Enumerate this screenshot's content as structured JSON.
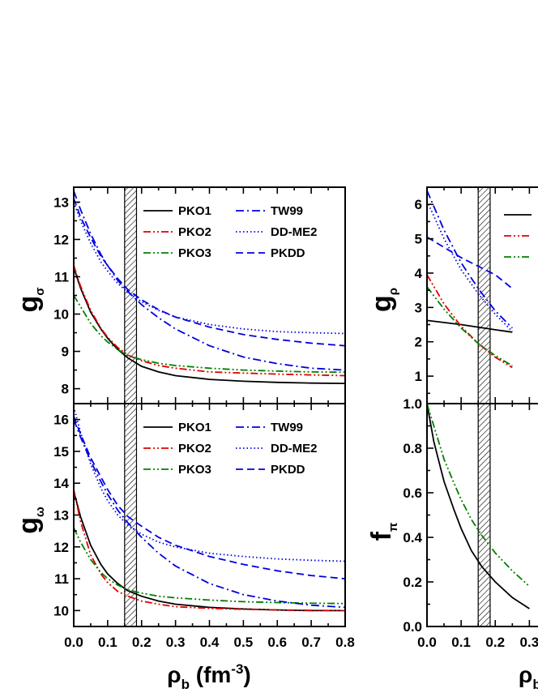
{
  "chart_data": [
    {
      "type": "line",
      "panel": "g_sigma",
      "ylabel": "g",
      "ylabel_sub": "σ",
      "xlim": [
        0.0,
        0.8
      ],
      "ylim": [
        7.6,
        13.4
      ],
      "yticks": [
        8,
        9,
        10,
        11,
        12,
        13
      ],
      "xlabel": "",
      "legend": "top-right, two columns",
      "shaded_band": [
        0.15,
        0.185
      ],
      "series": [
        {
          "name": "PKO1",
          "color": "#000000",
          "dash": "solid",
          "x": [
            0.0,
            0.02,
            0.05,
            0.08,
            0.1,
            0.13,
            0.16,
            0.2,
            0.25,
            0.3,
            0.4,
            0.5,
            0.6,
            0.7,
            0.8
          ],
          "y": [
            11.25,
            10.7,
            10.05,
            9.6,
            9.35,
            9.05,
            8.82,
            8.6,
            8.45,
            8.35,
            8.25,
            8.2,
            8.17,
            8.15,
            8.14
          ]
        },
        {
          "name": "PKO2",
          "color": "#e00000",
          "dash": "dashdotdot",
          "x": [
            0.0,
            0.02,
            0.05,
            0.08,
            0.1,
            0.13,
            0.16,
            0.2,
            0.25,
            0.3,
            0.4,
            0.5,
            0.6,
            0.7,
            0.8
          ],
          "y": [
            11.3,
            10.75,
            10.1,
            9.62,
            9.38,
            9.1,
            8.9,
            8.75,
            8.62,
            8.55,
            8.45,
            8.42,
            8.39,
            8.37,
            8.35
          ]
        },
        {
          "name": "PKO3",
          "color": "#008000",
          "dash": "dashdotdot",
          "x": [
            0.0,
            0.02,
            0.05,
            0.08,
            0.1,
            0.13,
            0.16,
            0.2,
            0.25,
            0.3,
            0.4,
            0.5,
            0.6,
            0.7,
            0.8
          ],
          "y": [
            10.5,
            10.2,
            9.75,
            9.42,
            9.25,
            9.05,
            8.88,
            8.78,
            8.68,
            8.62,
            8.55,
            8.5,
            8.47,
            8.45,
            8.44
          ]
        },
        {
          "name": "TW99",
          "color": "#0000e0",
          "dash": "dashdot",
          "x": [
            0.0,
            0.02,
            0.05,
            0.08,
            0.1,
            0.13,
            0.16,
            0.2,
            0.25,
            0.3,
            0.4,
            0.5,
            0.6,
            0.7,
            0.8
          ],
          "y": [
            13.3,
            12.8,
            12.15,
            11.6,
            11.3,
            10.9,
            10.6,
            10.25,
            9.9,
            9.6,
            9.15,
            8.85,
            8.67,
            8.55,
            8.5
          ]
        },
        {
          "name": "DD-ME2",
          "color": "#0000e0",
          "dash": "dotted",
          "x": [
            0.0,
            0.02,
            0.05,
            0.08,
            0.1,
            0.13,
            0.16,
            0.2,
            0.25,
            0.3,
            0.4,
            0.5,
            0.6,
            0.7,
            0.8
          ],
          "y": [
            13.0,
            12.5,
            11.9,
            11.4,
            11.15,
            10.82,
            10.58,
            10.33,
            10.1,
            9.92,
            9.72,
            9.6,
            9.53,
            9.5,
            9.48
          ]
        },
        {
          "name": "PKDD",
          "color": "#0000e0",
          "dash": "dashed",
          "x": [
            0.0,
            0.02,
            0.05,
            0.08,
            0.1,
            0.13,
            0.16,
            0.2,
            0.25,
            0.3,
            0.4,
            0.5,
            0.6,
            0.7,
            0.8
          ],
          "y": [
            13.1,
            12.6,
            12.05,
            11.55,
            11.3,
            10.95,
            10.65,
            10.38,
            10.12,
            9.92,
            9.65,
            9.45,
            9.32,
            9.22,
            9.15
          ]
        }
      ]
    },
    {
      "type": "line",
      "panel": "g_omega",
      "ylabel": "g",
      "ylabel_sub": "ω",
      "xlabel": "ρb (fm-3)",
      "xlim": [
        0.0,
        0.8
      ],
      "ylim": [
        9.5,
        16.5
      ],
      "yticks": [
        10,
        11,
        12,
        13,
        14,
        15,
        16
      ],
      "xticks": [
        0.0,
        0.1,
        0.2,
        0.3,
        0.4,
        0.5,
        0.6,
        0.7,
        0.8
      ],
      "legend": "top-right, two columns",
      "shaded_band": [
        0.15,
        0.185
      ],
      "series": [
        {
          "name": "PKO1",
          "color": "#000000",
          "dash": "solid",
          "x": [
            0.0,
            0.02,
            0.05,
            0.08,
            0.1,
            0.13,
            0.16,
            0.2,
            0.25,
            0.3,
            0.4,
            0.5,
            0.6,
            0.7,
            0.8
          ],
          "y": [
            13.75,
            12.95,
            12.05,
            11.45,
            11.15,
            10.85,
            10.62,
            10.45,
            10.3,
            10.2,
            10.1,
            10.05,
            10.02,
            10.0,
            10.0
          ]
        },
        {
          "name": "PKO2",
          "color": "#e00000",
          "dash": "dashdotdot",
          "x": [
            0.0,
            0.02,
            0.05,
            0.08,
            0.1,
            0.13,
            0.16,
            0.2,
            0.25,
            0.3,
            0.4,
            0.5,
            0.6,
            0.7,
            0.8
          ],
          "y": [
            13.8,
            12.8,
            11.75,
            11.15,
            10.88,
            10.6,
            10.45,
            10.3,
            10.2,
            10.12,
            10.07,
            10.04,
            10.02,
            10.01,
            10.0
          ]
        },
        {
          "name": "PKO3",
          "color": "#008000",
          "dash": "dashdotdot",
          "x": [
            0.0,
            0.02,
            0.05,
            0.08,
            0.1,
            0.13,
            0.16,
            0.2,
            0.25,
            0.3,
            0.4,
            0.5,
            0.6,
            0.7,
            0.8
          ],
          "y": [
            12.6,
            12.15,
            11.6,
            11.2,
            11.0,
            10.8,
            10.65,
            10.55,
            10.45,
            10.4,
            10.33,
            10.28,
            10.25,
            10.23,
            10.22
          ]
        },
        {
          "name": "TW99",
          "color": "#0000e0",
          "dash": "dashdot",
          "x": [
            0.0,
            0.02,
            0.05,
            0.08,
            0.1,
            0.13,
            0.16,
            0.2,
            0.25,
            0.3,
            0.4,
            0.5,
            0.6,
            0.7,
            0.8
          ],
          "y": [
            16.0,
            15.45,
            14.7,
            14.05,
            13.65,
            13.15,
            12.75,
            12.3,
            11.8,
            11.4,
            10.85,
            10.5,
            10.3,
            10.17,
            10.1
          ]
        },
        {
          "name": "DD-ME2",
          "color": "#0000e0",
          "dash": "dotted",
          "x": [
            0.0,
            0.02,
            0.05,
            0.08,
            0.1,
            0.13,
            0.16,
            0.2,
            0.25,
            0.3,
            0.4,
            0.5,
            0.6,
            0.7,
            0.8
          ],
          "y": [
            16.4,
            15.6,
            14.6,
            13.85,
            13.45,
            13.0,
            12.68,
            12.4,
            12.15,
            12.0,
            11.8,
            11.7,
            11.62,
            11.58,
            11.55
          ]
        },
        {
          "name": "PKDD",
          "color": "#0000e0",
          "dash": "dashed",
          "x": [
            0.0,
            0.02,
            0.05,
            0.08,
            0.1,
            0.13,
            0.16,
            0.2,
            0.25,
            0.3,
            0.4,
            0.5,
            0.6,
            0.7,
            0.8
          ],
          "y": [
            16.1,
            15.55,
            14.8,
            14.2,
            13.8,
            13.3,
            12.95,
            12.65,
            12.3,
            12.05,
            11.7,
            11.45,
            11.25,
            11.1,
            11.0
          ]
        }
      ]
    },
    {
      "type": "line",
      "panel": "g_rho",
      "ylabel": "g",
      "ylabel_sub": "ρ",
      "xlim": [
        0.0,
        0.8
      ],
      "ylim": [
        0.2,
        6.5
      ],
      "yticks": [
        1,
        2,
        3,
        4,
        5,
        6
      ],
      "legend": "top-right (cropped)",
      "shaded_band": [
        0.15,
        0.185
      ],
      "series": [
        {
          "color": "#000000",
          "dash": "solid",
          "x": [
            0.0,
            0.1,
            0.2,
            0.25
          ],
          "y": [
            2.62,
            2.5,
            2.35,
            2.28
          ]
        },
        {
          "color": "#e00000",
          "dash": "dashdotdot",
          "x": [
            0.0,
            0.05,
            0.1,
            0.15,
            0.2,
            0.25
          ],
          "y": [
            3.95,
            3.1,
            2.45,
            1.95,
            1.55,
            1.25
          ]
        },
        {
          "color": "#008000",
          "dash": "dashdotdot",
          "x": [
            0.0,
            0.05,
            0.1,
            0.15,
            0.2,
            0.25
          ],
          "y": [
            3.6,
            2.95,
            2.4,
            1.95,
            1.6,
            1.3
          ]
        },
        {
          "color": "#0000e0",
          "dash": "dashdot",
          "x": [
            0.0,
            0.05,
            0.1,
            0.15,
            0.2,
            0.25
          ],
          "y": [
            6.4,
            5.25,
            4.3,
            3.55,
            2.9,
            2.4
          ]
        },
        {
          "color": "#0000e0",
          "dash": "dotted",
          "x": [
            0.0,
            0.05,
            0.1,
            0.15,
            0.2,
            0.25
          ],
          "y": [
            6.1,
            5.0,
            4.1,
            3.4,
            2.8,
            2.3
          ]
        },
        {
          "color": "#0000e0",
          "dash": "dashed",
          "x": [
            0.0,
            0.05,
            0.1,
            0.15,
            0.2,
            0.25
          ],
          "y": [
            5.05,
            4.75,
            4.45,
            4.2,
            3.95,
            3.55
          ]
        }
      ]
    },
    {
      "type": "line",
      "panel": "f_pi",
      "ylabel": "f",
      "ylabel_sub": "π",
      "xlabel": "ρb",
      "xlim": [
        0.0,
        0.8
      ],
      "ylim": [
        0.0,
        1.0
      ],
      "yticks": [
        0.0,
        0.2,
        0.4,
        0.6,
        0.8,
        1.0
      ],
      "xticks": [
        0.0,
        0.1,
        0.2,
        0.3
      ],
      "shaded_band": [
        0.15,
        0.185
      ],
      "series": [
        {
          "color": "#000000",
          "dash": "solid",
          "x": [
            0.0,
            0.02,
            0.05,
            0.08,
            0.1,
            0.13,
            0.16,
            0.2,
            0.25,
            0.3
          ],
          "y": [
            1.0,
            0.83,
            0.65,
            0.52,
            0.44,
            0.34,
            0.27,
            0.2,
            0.13,
            0.08
          ]
        },
        {
          "color": "#008000",
          "dash": "dashdotdot",
          "x": [
            0.0,
            0.02,
            0.05,
            0.08,
            0.1,
            0.13,
            0.16,
            0.2,
            0.25,
            0.3
          ],
          "y": [
            1.0,
            0.9,
            0.75,
            0.64,
            0.57,
            0.48,
            0.41,
            0.33,
            0.25,
            0.18
          ]
        }
      ]
    }
  ]
}
